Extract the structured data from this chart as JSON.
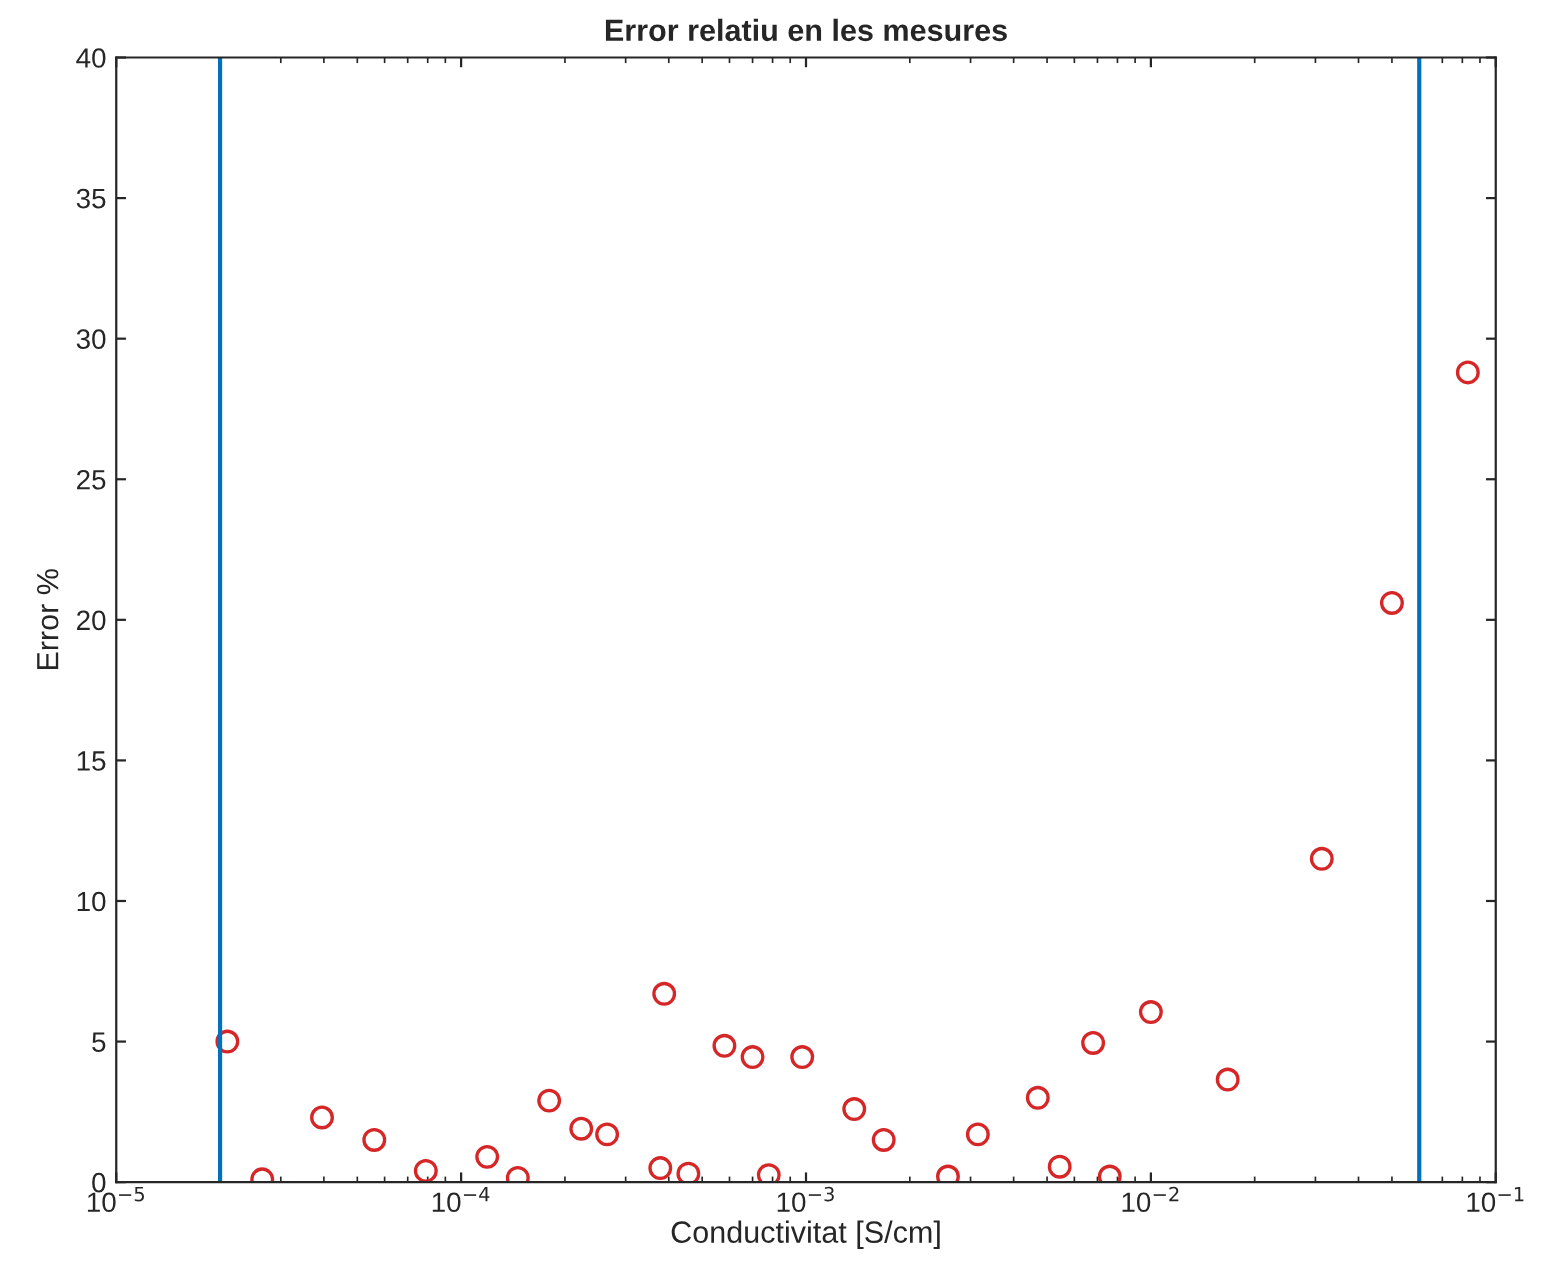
{
  "chart_data": {
    "type": "scatter",
    "title": "Error relatiu en les mesures",
    "xlabel": "Conductivitat [S/cm]",
    "ylabel": "Error %",
    "log": "x",
    "grid": false,
    "marker": "circle",
    "xlim": [
      1e-05,
      0.1
    ],
    "ylim": [
      0,
      40
    ],
    "xticks": [
      {
        "value": 1e-05,
        "label": "10$^{−5}$"
      },
      {
        "value": 0.0001,
        "label": "10$^{−4}$"
      },
      {
        "value": 0.001,
        "label": "10$^{−3}$"
      },
      {
        "value": 0.01,
        "label": "10$^{−2}$"
      },
      {
        "value": 0.1,
        "label": "10$^{−1}$"
      }
    ],
    "yticks": [
      0,
      5,
      10,
      15,
      20,
      25,
      30,
      35,
      40
    ],
    "ref_lines": [
      {
        "axis": "x",
        "value": 2e-05,
        "color": "#0072bd"
      },
      {
        "axis": "x",
        "value": 0.06,
        "color": "#0072bd"
      }
    ],
    "series": [
      {
        "color": "#d62728",
        "x": [
          2.1e-05,
          2.65e-05,
          3.95e-05,
          5.6e-05,
          7.9e-05,
          0.000119,
          0.000146,
          0.00018,
          0.000223,
          0.000265,
          0.000388,
          0.000378,
          0.000456,
          0.00058,
          0.0007,
          0.00078,
          0.000975,
          0.00138,
          0.00168,
          0.00258,
          0.00315,
          0.0047,
          0.00544,
          0.0068,
          0.0076,
          0.01,
          0.0167,
          0.0313,
          0.05,
          0.083
        ],
        "values": [
          5.0,
          0.1,
          2.3,
          1.5,
          0.4,
          0.9,
          0.15,
          2.9,
          1.9,
          1.7,
          6.7,
          0.5,
          0.3,
          4.85,
          4.45,
          0.25,
          4.45,
          2.6,
          1.5,
          0.2,
          1.7,
          3.0,
          0.55,
          4.95,
          0.2,
          6.05,
          3.65,
          11.5,
          20.6,
          28.8
        ]
      }
    ]
  }
}
